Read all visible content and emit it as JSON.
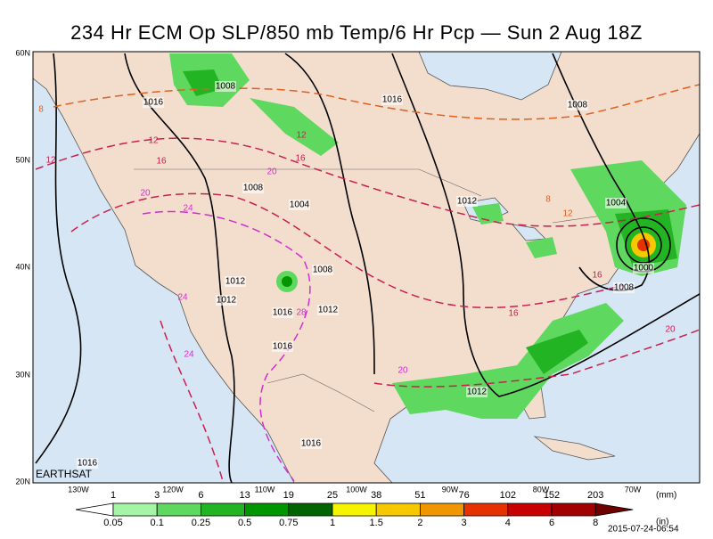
{
  "header": {
    "title": "234 Hr ECM Op SLP/850 mb Temp/6 Hr Pcp — Sun 2 Aug 18Z"
  },
  "map": {
    "lat_labels": [
      "60N",
      "50N",
      "40N",
      "30N",
      "20N"
    ],
    "lon_labels": [
      "130W",
      "120W",
      "110W",
      "100W",
      "90W",
      "80W",
      "70W"
    ],
    "pressure_labels": [
      "1016",
      "1008",
      "1016",
      "1008",
      "1008",
      "1004",
      "1012",
      "1004",
      "1008",
      "1012",
      "1012",
      "1016",
      "1012",
      "1016",
      "1000",
      "1008",
      "1012",
      "1016",
      "1016"
    ],
    "temperature_labels": [
      "8",
      "12",
      "12",
      "16",
      "20",
      "16",
      "12",
      "24",
      "20",
      "24",
      "24",
      "28",
      "20",
      "16",
      "16",
      "20",
      "12",
      "8"
    ],
    "credit": "EARTHSAT"
  },
  "colorbar": {
    "mm_labels": [
      "1",
      "3",
      "6",
      "13",
      "19",
      "25",
      "38",
      "51",
      "76",
      "102",
      "152",
      "203"
    ],
    "mm_unit": "(mm)",
    "in_labels": [
      "0.05",
      "0.1",
      "0.25",
      "0.5",
      "0.75",
      "1",
      "1.5",
      "2",
      "3",
      "4",
      "6",
      "8"
    ],
    "in_unit": "(in)",
    "colors": [
      "#ffffff",
      "#a6f5a6",
      "#5ed85e",
      "#22b422",
      "#009600",
      "#006400",
      "#f5f500",
      "#f5c800",
      "#f09600",
      "#e63200",
      "#c80000",
      "#a00000",
      "#6e0000"
    ]
  },
  "footer": {
    "timestamp": "2015-07-24-06:54"
  }
}
